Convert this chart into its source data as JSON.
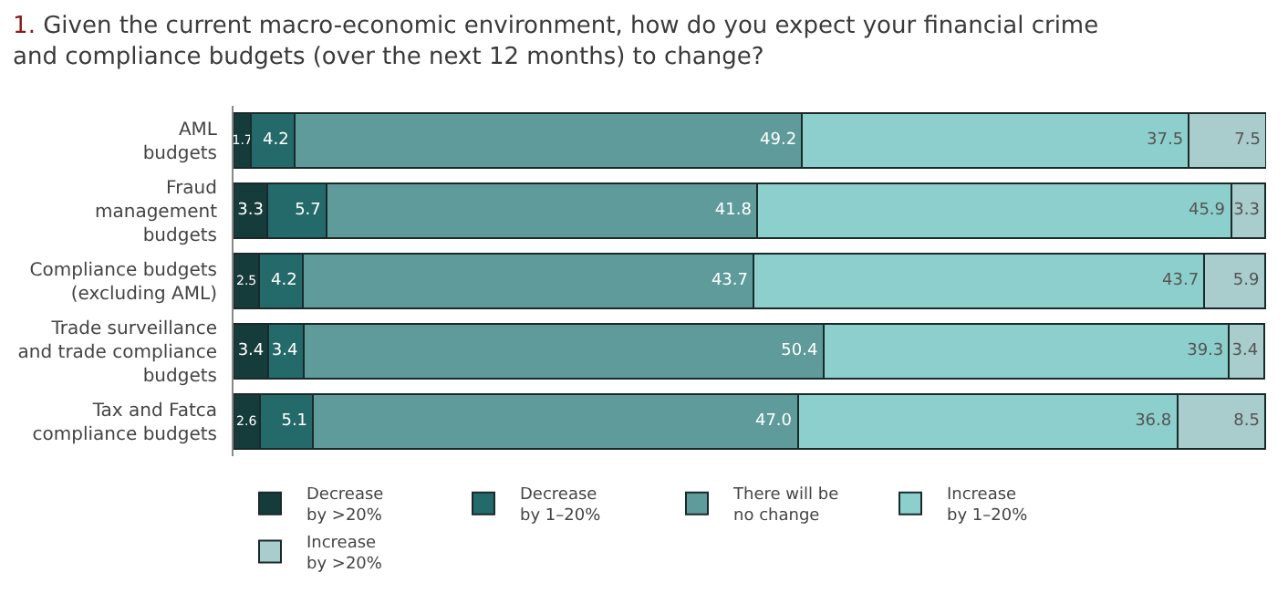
{
  "chart_data": {
    "type": "bar",
    "orientation": "horizontal",
    "stacked": true,
    "data_labels": true,
    "legend": "bottom",
    "tick_labels": "y",
    "title": "1. Given the current macro-economic environment, how do you expect your financial crime\nand compliance budgets (over the next 12 months) to change?",
    "categories": [
      "AML\nbudgets",
      "Fraud\nmanagement\nbudgets",
      "Compliance budgets\n(excluding AML)",
      "Trade surveillance\nand trade compliance\nbudgets",
      "Tax and Fatca\ncompliance budgets"
    ],
    "series": [
      {
        "name": "Decrease\nby >20%",
        "color": "#163b3b",
        "values": [
          1.7,
          3.3,
          2.5,
          3.4,
          2.6
        ],
        "value_labels": [
          "1.7",
          "3.3",
          "2.5",
          "3.4",
          "2.6"
        ]
      },
      {
        "name": "Decrease\nby 1–20%",
        "color": "#246a6a",
        "values": [
          4.2,
          5.7,
          4.2,
          3.4,
          5.1
        ],
        "value_labels": [
          "4.2",
          "5.7",
          "4.2",
          "3.4",
          "5.1"
        ]
      },
      {
        "name": "There will be\nno change",
        "color": "#5f9b9b",
        "values": [
          49.2,
          41.8,
          43.7,
          50.4,
          47.0
        ],
        "value_labels": [
          "49.2",
          "41.8",
          "43.7",
          "50.4",
          "47.0"
        ]
      },
      {
        "name": "Increase\nby 1–20%",
        "color": "#8ccfcc",
        "values": [
          37.5,
          45.9,
          43.7,
          39.3,
          36.8
        ],
        "value_labels": [
          "37.5",
          "45.9",
          "43.7",
          "39.3",
          "36.8"
        ]
      },
      {
        "name": "Increase\nby >20%",
        "color": "#a9cccc",
        "values": [
          7.5,
          3.3,
          5.9,
          3.4,
          8.5
        ],
        "value_labels": [
          "7.5",
          "3.3",
          "5.9",
          "3.4",
          "8.5"
        ]
      }
    ]
  }
}
